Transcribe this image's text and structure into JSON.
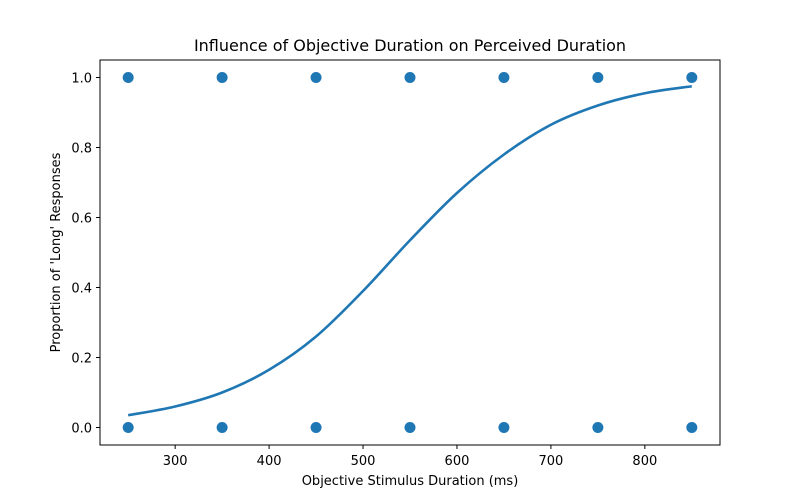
{
  "chart_data": {
    "type": "scatter",
    "title": "Influence of Objective Duration on Perceived Duration",
    "xlabel": "Objective Stimulus Duration (ms)",
    "ylabel": "Proportion of 'Long' Responses",
    "xlim": [
      220,
      880
    ],
    "ylim": [
      -0.05,
      1.05
    ],
    "xticks": [
      300,
      400,
      500,
      600,
      700,
      800
    ],
    "xtick_labels": [
      "300",
      "400",
      "500",
      "600",
      "700",
      "800"
    ],
    "yticks": [
      0.0,
      0.2,
      0.4,
      0.6,
      0.8,
      1.0
    ],
    "ytick_labels": [
      "0.0",
      "0.2",
      "0.4",
      "0.6",
      "0.8",
      "1.0"
    ],
    "grid": false,
    "legend": "none",
    "color": "#1f77b4",
    "scatter_points": {
      "x": [
        250,
        350,
        450,
        550,
        650,
        750,
        850,
        250,
        350,
        450,
        550,
        650,
        750,
        850
      ],
      "y": [
        1,
        1,
        1,
        1,
        1,
        1,
        1,
        0,
        0,
        0,
        0,
        0,
        0,
        0
      ]
    },
    "fit_curve": {
      "x": [
        250,
        300,
        350,
        400,
        450,
        500,
        550,
        600,
        650,
        700,
        750,
        800,
        850
      ],
      "y": [
        0.035,
        0.06,
        0.1,
        0.165,
        0.26,
        0.39,
        0.535,
        0.67,
        0.78,
        0.865,
        0.92,
        0.955,
        0.975
      ]
    }
  }
}
